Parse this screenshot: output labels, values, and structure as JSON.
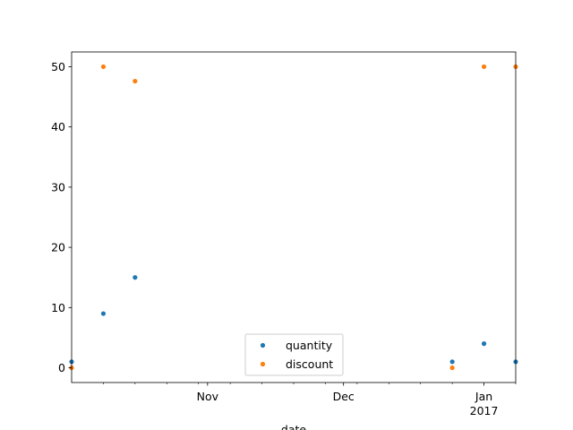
{
  "chart_data": {
    "type": "scatter",
    "title": "",
    "xlabel": "date",
    "ylabel": "",
    "x_axis_type": "date",
    "xlim": [
      "2016-10-02",
      "2017-01-08"
    ],
    "ylim": [
      -2.45,
      52.45
    ],
    "y_ticks": [
      0,
      10,
      20,
      30,
      40,
      50
    ],
    "x_major_ticks": [
      {
        "date": "2016-11-01",
        "label": "Nov",
        "sublabel": ""
      },
      {
        "date": "2016-12-01",
        "label": "Dec",
        "sublabel": ""
      },
      {
        "date": "2017-01-01",
        "label": "Jan",
        "sublabel": "2017"
      }
    ],
    "x_minor_ticks": [
      "2016-10-09",
      "2016-10-16",
      "2016-10-23",
      "2016-10-30",
      "2016-11-06",
      "2016-11-13",
      "2016-11-20",
      "2016-11-27",
      "2016-12-04",
      "2016-12-11",
      "2016-12-18",
      "2016-12-25",
      "2017-01-08"
    ],
    "grid": false,
    "legend_position": "lower-center",
    "series": [
      {
        "name": "quantity",
        "color": "#1f77b4",
        "points": [
          {
            "x": "2016-10-02",
            "y": 1
          },
          {
            "x": "2016-10-09",
            "y": 9
          },
          {
            "x": "2016-10-16",
            "y": 15
          },
          {
            "x": "2016-12-25",
            "y": 1
          },
          {
            "x": "2017-01-01",
            "y": 4
          },
          {
            "x": "2017-01-08",
            "y": 1
          }
        ]
      },
      {
        "name": "discount",
        "color": "#ff7f0e",
        "points": [
          {
            "x": "2016-10-02",
            "y": 0
          },
          {
            "x": "2016-10-09",
            "y": 50
          },
          {
            "x": "2016-10-16",
            "y": 47.6
          },
          {
            "x": "2016-12-25",
            "y": 0
          },
          {
            "x": "2017-01-01",
            "y": 50
          },
          {
            "x": "2017-01-08",
            "y": 50
          }
        ]
      }
    ]
  }
}
